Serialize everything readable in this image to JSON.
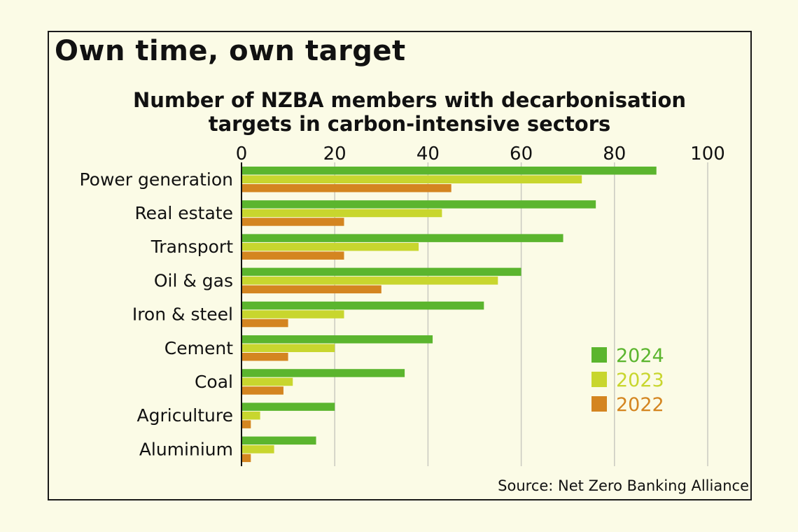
{
  "headline": "Own time, own target",
  "source": "Source: Net Zero Banking Alliance",
  "colors": {
    "2024": "#5bb52e",
    "2023": "#c8d62e",
    "2022": "#d48520"
  },
  "chart_data": {
    "type": "bar",
    "orientation": "horizontal",
    "title": "Number of NZBA members with decarbonisation targets in carbon-intensive sectors",
    "title_lines": [
      "Number of NZBA members with decarbonisation",
      "targets in carbon-intensive sectors"
    ],
    "categories": [
      "Power generation",
      "Real estate",
      "Transport",
      "Oil & gas",
      "Iron & steel",
      "Cement",
      "Coal",
      "Agriculture",
      "Aluminium"
    ],
    "series": [
      {
        "name": "2024",
        "values": [
          89,
          76,
          69,
          60,
          52,
          41,
          35,
          20,
          16
        ]
      },
      {
        "name": "2023",
        "values": [
          73,
          43,
          38,
          55,
          22,
          20,
          11,
          4,
          7
        ]
      },
      {
        "name": "2022",
        "values": [
          45,
          22,
          22,
          30,
          10,
          10,
          9,
          2,
          2
        ]
      }
    ],
    "xlim": [
      0,
      100
    ],
    "xticks": [
      0,
      20,
      40,
      60,
      80,
      100
    ],
    "xtick_labels": [
      "0",
      "20",
      "40",
      "60",
      "80",
      "100"
    ],
    "axis_position": "top",
    "grid": true,
    "legend": [
      "2024",
      "2023",
      "2022"
    ],
    "legend_position": "bottom-right"
  }
}
